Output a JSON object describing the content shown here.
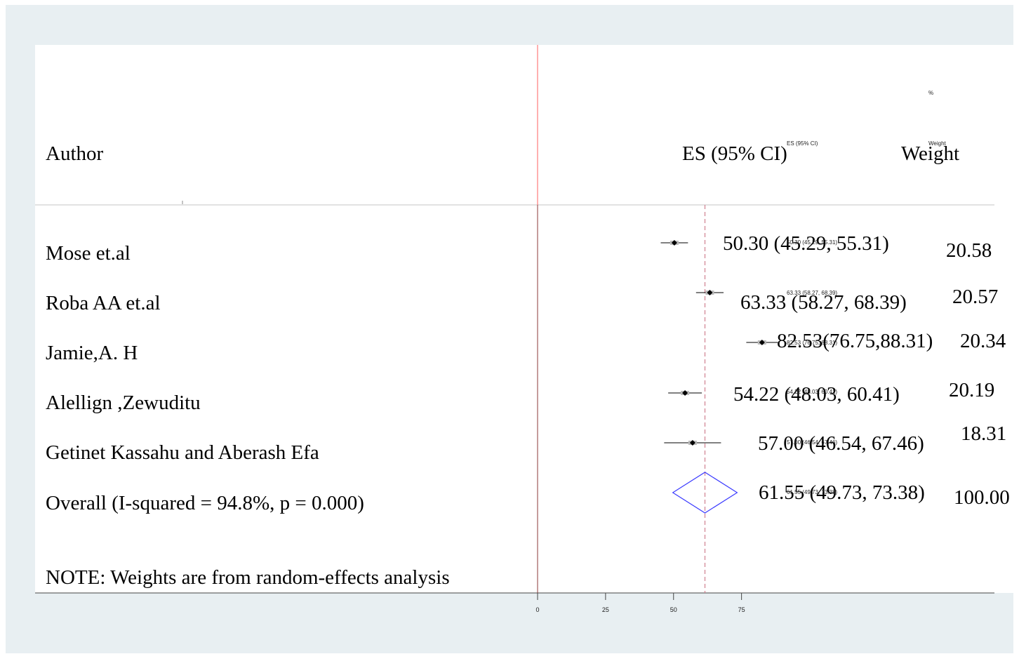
{
  "header": {
    "author": "Author",
    "es_ci": "ES (95% CI)",
    "weight": "Weight",
    "pct": "%",
    "small_es_ci": "ES (95% CI)",
    "small_weight": "Weight"
  },
  "note": "NOTE: Weights are from random-effects analysis",
  "chart_data": {
    "type": "forest",
    "xlim": [
      0,
      75
    ],
    "x_ticks": [
      "0",
      "25",
      "50",
      "75"
    ],
    "studies": [
      {
        "author": "Mose et.al",
        "es": 50.3,
        "lo": 45.29,
        "hi": 55.31,
        "es_label": "50.30 (45.29, 55.31)",
        "small_label": "50.30 (45.29, 55.31)",
        "weight": "20.58"
      },
      {
        "author": "Roba AA et.al",
        "es": 63.33,
        "lo": 58.27,
        "hi": 68.39,
        "es_label": "63.33 (58.27, 68.39)",
        "small_label": "63.33 (58.27, 68.39)",
        "weight": "20.57"
      },
      {
        "author": "Jamie,A. H",
        "es": 82.53,
        "lo": 76.75,
        "hi": 88.31,
        "es_label": "82.53(76.75,88.31)",
        "small_label": "82.53 (76.75, 88.31)",
        "weight": "20.34"
      },
      {
        "author": "Alellign ,Zewuditu",
        "es": 54.22,
        "lo": 48.03,
        "hi": 60.41,
        "es_label": "54.22 (48.03, 60.41)",
        "small_label": "54.22 (48.03, 60.41)",
        "weight": "20.19"
      },
      {
        "author": "Getinet Kassahu and Aberash Efa",
        "es": 57.0,
        "lo": 46.54,
        "hi": 67.46,
        "es_label": "57.00 (46.54, 67.46)",
        "small_label": "57.00 (46.54, 67.46)",
        "weight": "18.31"
      }
    ],
    "overall": {
      "author": "Overall (I-squared = 94.8%, p = 0.000)",
      "es": 61.55,
      "lo": 49.73,
      "hi": 73.38,
      "es_label": "61.55 (49.73, 73.38)",
      "small_label": "61.55 (49.73, 73.38)",
      "weight": "100.00"
    },
    "colors": {
      "diamond": "#3b3bff",
      "null_line": "#f08080",
      "overall_line": "#d08090",
      "marker": "#000000"
    }
  }
}
